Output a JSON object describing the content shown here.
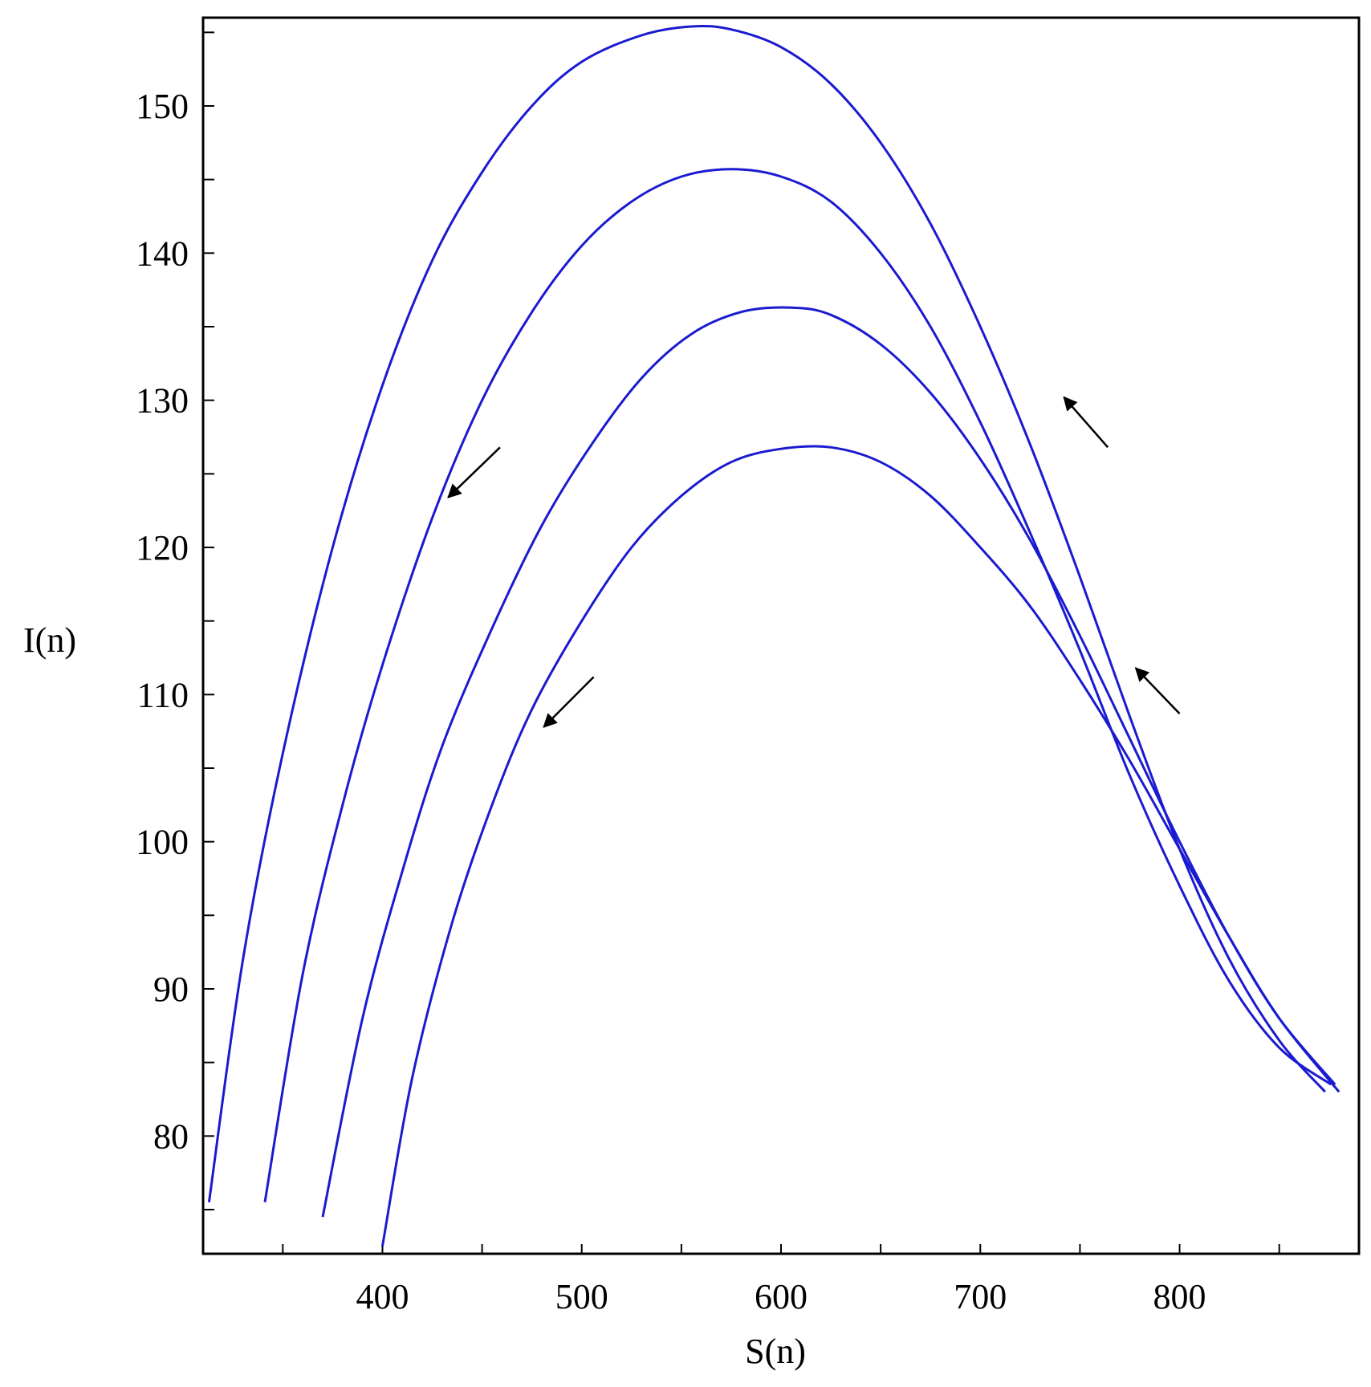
{
  "chart_data": {
    "type": "line",
    "title": "",
    "xlabel": "S(n)",
    "ylabel": "I(n)",
    "xlim": [
      310,
      890
    ],
    "ylim": [
      72,
      156
    ],
    "x_ticks": [
      400,
      500,
      600,
      700,
      800
    ],
    "x_minor_ticks": [
      350,
      450,
      550,
      650,
      750,
      850
    ],
    "y_ticks": [
      80,
      90,
      100,
      110,
      120,
      130,
      140,
      150
    ],
    "y_minor_ticks": [
      75,
      85,
      95,
      105,
      115,
      125,
      135,
      145,
      155
    ],
    "grid": false,
    "line_color": "#1a1ad0",
    "arrow_color": "#000000",
    "series": [
      {
        "points": [
          [
            313,
            75.5
          ],
          [
            330,
            92
          ],
          [
            350,
            106
          ],
          [
            375,
            120
          ],
          [
            400,
            131
          ],
          [
            425,
            139.5
          ],
          [
            450,
            145.5
          ],
          [
            475,
            150
          ],
          [
            500,
            153
          ],
          [
            530,
            154.8
          ],
          [
            555,
            155.4
          ],
          [
            575,
            155.2
          ],
          [
            600,
            154
          ],
          [
            625,
            151.5
          ],
          [
            650,
            147.5
          ],
          [
            675,
            142
          ],
          [
            700,
            135
          ],
          [
            725,
            127
          ],
          [
            750,
            118
          ],
          [
            775,
            108.5
          ],
          [
            800,
            99.5
          ],
          [
            825,
            92
          ],
          [
            850,
            86.5
          ],
          [
            873,
            83
          ]
        ]
      },
      {
        "points": [
          [
            341,
            75.5
          ],
          [
            360,
            91
          ],
          [
            380,
            102.5
          ],
          [
            400,
            112
          ],
          [
            425,
            122
          ],
          [
            450,
            130
          ],
          [
            475,
            136
          ],
          [
            500,
            140.5
          ],
          [
            525,
            143.5
          ],
          [
            550,
            145.2
          ],
          [
            575,
            145.7
          ],
          [
            600,
            145.2
          ],
          [
            625,
            143.5
          ],
          [
            650,
            140
          ],
          [
            675,
            135
          ],
          [
            700,
            128.5
          ],
          [
            725,
            121
          ],
          [
            750,
            113
          ],
          [
            775,
            104.5
          ],
          [
            800,
            97
          ],
          [
            825,
            90.5
          ],
          [
            850,
            86
          ],
          [
            876,
            83.5
          ]
        ]
      },
      {
        "points": [
          [
            370,
            74.5
          ],
          [
            390,
            88
          ],
          [
            410,
            98
          ],
          [
            430,
            106.5
          ],
          [
            455,
            114.5
          ],
          [
            480,
            121.5
          ],
          [
            505,
            127
          ],
          [
            530,
            131.5
          ],
          [
            555,
            134.5
          ],
          [
            580,
            136
          ],
          [
            605,
            136.3
          ],
          [
            625,
            135.8
          ],
          [
            650,
            133.8
          ],
          [
            675,
            130.5
          ],
          [
            700,
            126
          ],
          [
            725,
            120.5
          ],
          [
            750,
            114
          ],
          [
            775,
            107
          ],
          [
            800,
            100
          ],
          [
            825,
            93.5
          ],
          [
            850,
            88
          ],
          [
            878,
            83.5
          ]
        ]
      },
      {
        "points": [
          [
            400,
            72.5
          ],
          [
            415,
            84
          ],
          [
            435,
            94.5
          ],
          [
            455,
            102.5
          ],
          [
            475,
            109
          ],
          [
            500,
            115
          ],
          [
            525,
            120
          ],
          [
            550,
            123.5
          ],
          [
            575,
            125.8
          ],
          [
            600,
            126.7
          ],
          [
            625,
            126.8
          ],
          [
            650,
            125.8
          ],
          [
            675,
            123.5
          ],
          [
            700,
            120
          ],
          [
            725,
            116
          ],
          [
            750,
            111
          ],
          [
            775,
            105.5
          ],
          [
            800,
            99.5
          ],
          [
            825,
            93.5
          ],
          [
            850,
            88
          ],
          [
            880,
            83
          ]
        ]
      }
    ],
    "arrows": [
      {
        "from": [
          459,
          126.8
        ],
        "to": [
          433,
          123.4
        ]
      },
      {
        "from": [
          506,
          111.2
        ],
        "to": [
          481,
          107.8
        ]
      },
      {
        "from": [
          764,
          126.8
        ],
        "to": [
          742,
          130.2
        ]
      },
      {
        "from": [
          800,
          108.7
        ],
        "to": [
          778,
          111.8
        ]
      }
    ]
  }
}
